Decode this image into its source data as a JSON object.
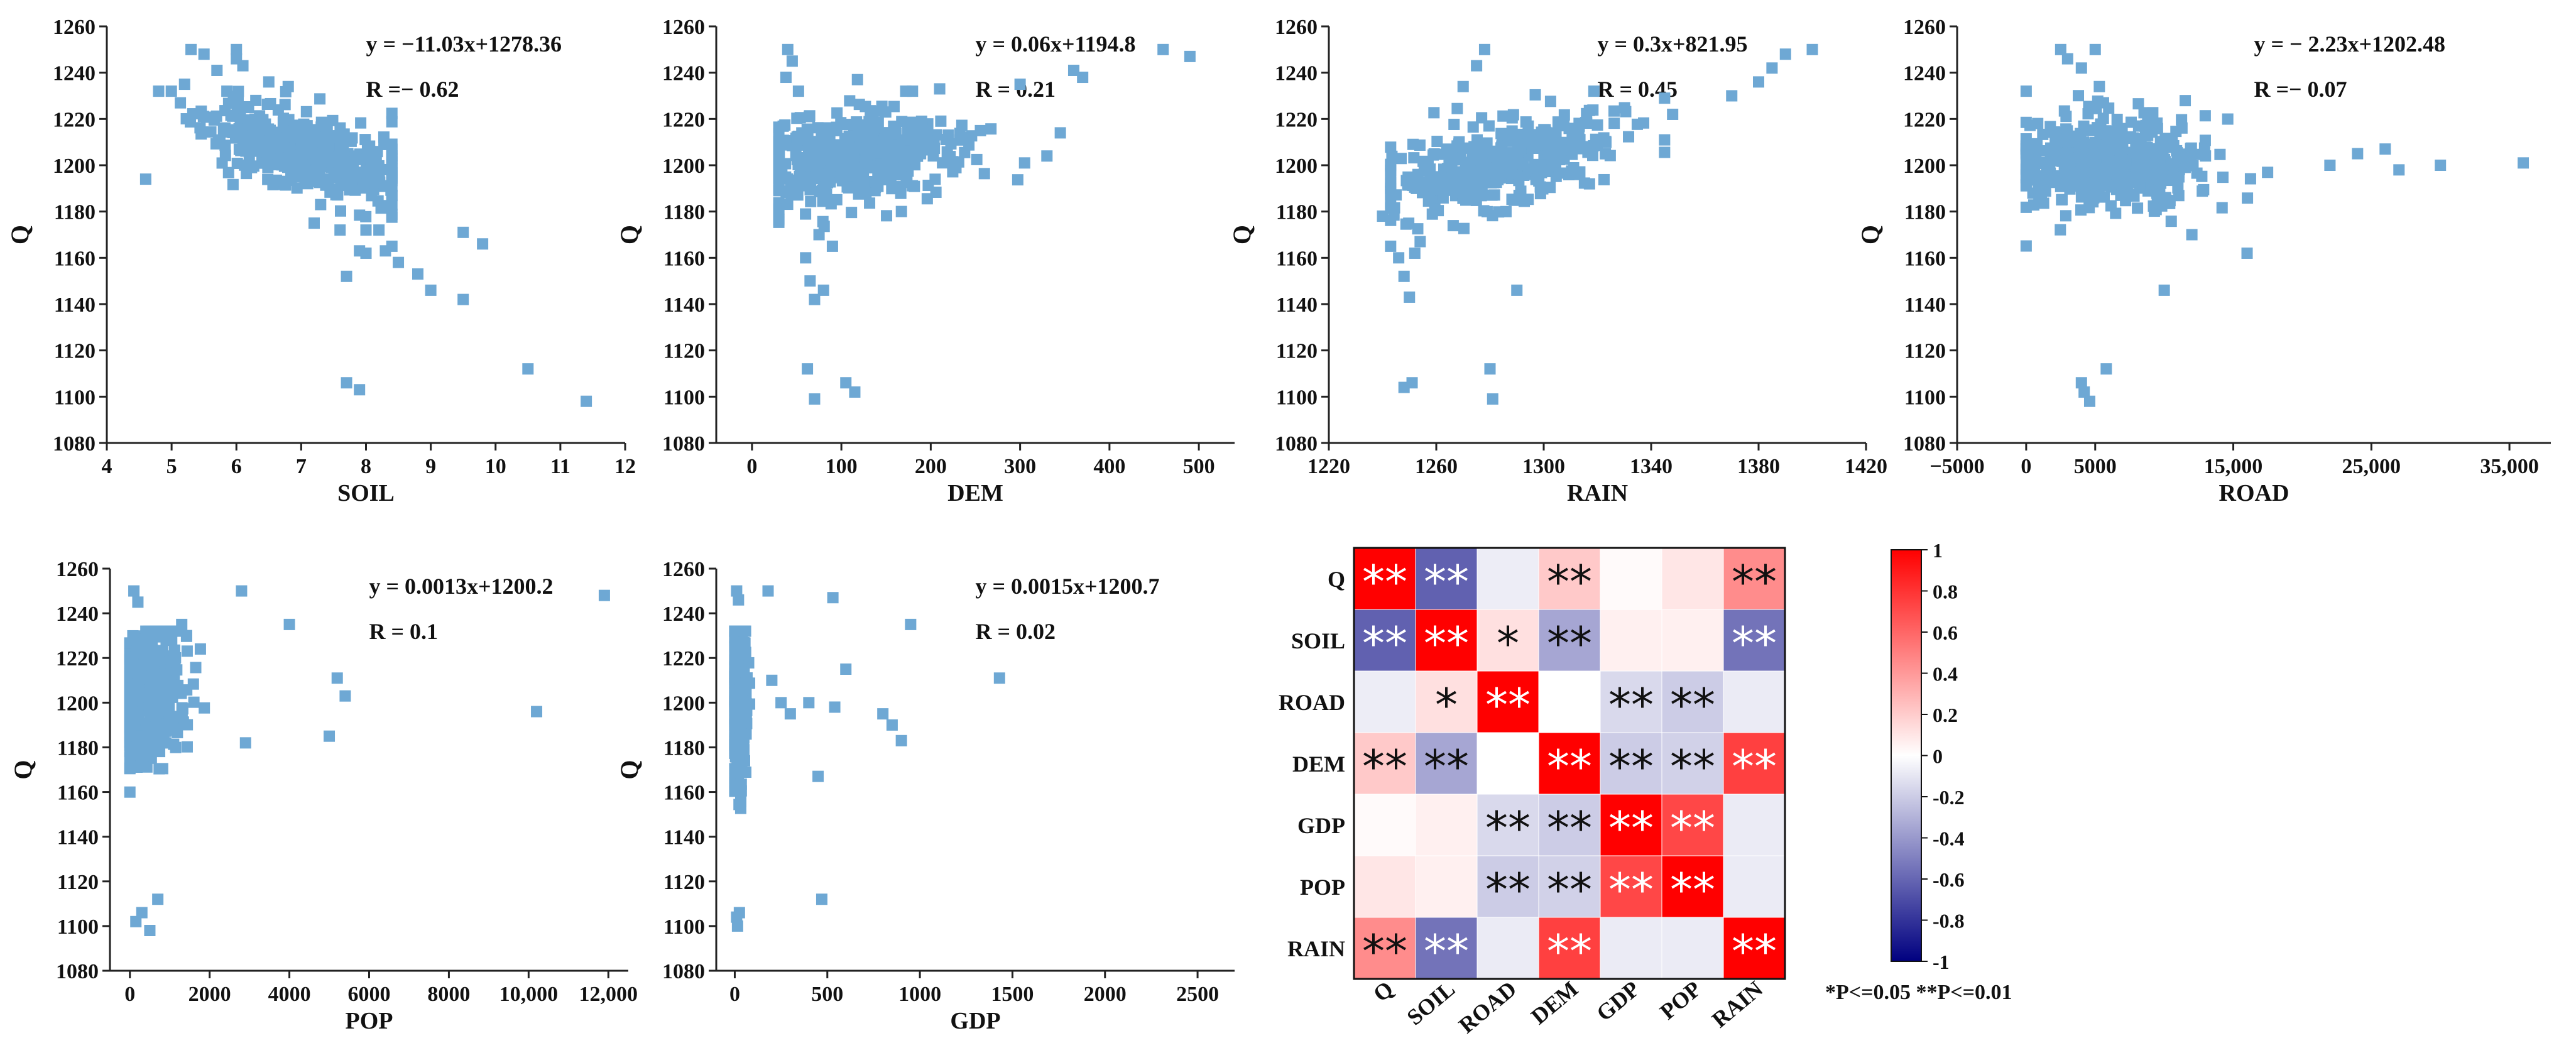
{
  "marker_color": "#6ea8d4",
  "significance_note": "*P<=0.05 **P<=0.01",
  "chart_data": [
    {
      "type": "scatter",
      "ylabel": "Q",
      "xlabel": "SOIL",
      "equation": "y = −11.03x+1278.36",
      "r_text": "R =− 0.62",
      "xlim": [
        4,
        12
      ],
      "ylim": [
        1080,
        1260
      ],
      "xticks": [
        4,
        5,
        6,
        7,
        8,
        9,
        10,
        11,
        12
      ],
      "xtick_labels": [
        "4",
        "5",
        "6",
        "7",
        "8",
        "9",
        "10",
        "11",
        "12"
      ],
      "yticks": [
        1080,
        1100,
        1120,
        1140,
        1160,
        1180,
        1200,
        1220,
        1240,
        1260
      ],
      "ytick_labels": [
        "1080",
        "1100",
        "1120",
        "1140",
        "1160",
        "1180",
        "1200",
        "1220",
        "1240",
        "1260"
      ],
      "cloud": {
        "n": 420,
        "seed": 11,
        "x_mean": 7.0,
        "x_sd": 0.75,
        "x_min": 4.8,
        "x_max": 8.4,
        "y_slope": -8,
        "y_int": 1262,
        "y_sd": 8
      },
      "points": [
        [
          4.6,
          1194
        ],
        [
          5.2,
          1235
        ],
        [
          5.3,
          1250
        ],
        [
          5.5,
          1248
        ],
        [
          5.7,
          1241
        ],
        [
          6.0,
          1250
        ],
        [
          6.0,
          1246
        ],
        [
          6.1,
          1243
        ],
        [
          6.3,
          1228
        ],
        [
          6.5,
          1236
        ],
        [
          6.8,
          1234
        ],
        [
          7.2,
          1175
        ],
        [
          7.3,
          1183
        ],
        [
          7.6,
          1172
        ],
        [
          7.7,
          1106
        ],
        [
          7.7,
          1152
        ],
        [
          7.9,
          1163
        ],
        [
          7.9,
          1103
        ],
        [
          8.0,
          1162
        ],
        [
          8.0,
          1172
        ],
        [
          8.2,
          1172
        ],
        [
          8.3,
          1163
        ],
        [
          8.4,
          1165
        ],
        [
          8.5,
          1158
        ],
        [
          8.8,
          1153
        ],
        [
          9.0,
          1146
        ],
        [
          9.5,
          1142
        ],
        [
          9.5,
          1171
        ],
        [
          9.8,
          1166
        ],
        [
          10.5,
          1112
        ],
        [
          11.4,
          1098
        ]
      ]
    },
    {
      "type": "scatter",
      "ylabel": "Q",
      "xlabel": "DEM",
      "equation": "y = 0.06x+1194.8",
      "r_text": "R = 0.21",
      "xlim": [
        -40,
        540
      ],
      "ylim": [
        1080,
        1260
      ],
      "xticks": [
        0,
        100,
        200,
        300,
        400,
        500
      ],
      "xtick_labels": [
        "0",
        "100",
        "200",
        "300",
        "400",
        "500"
      ],
      "yticks": [
        1080,
        1100,
        1120,
        1140,
        1160,
        1180,
        1200,
        1220,
        1240,
        1260
      ],
      "ytick_labels": [
        "1080",
        "1100",
        "1120",
        "1140",
        "1160",
        "1180",
        "1200",
        "1220",
        "1240",
        "1260"
      ],
      "cloud": {
        "n": 420,
        "seed": 23,
        "x_mean": 110,
        "x_sd": 55,
        "x_min": 30,
        "x_max": 300,
        "y_slope": 0.04,
        "y_int": 1198,
        "y_sd": 10
      },
      "points": [
        [
          40,
          1250
        ],
        [
          45,
          1245
        ],
        [
          38,
          1238
        ],
        [
          52,
          1232
        ],
        [
          60,
          1160
        ],
        [
          65,
          1150
        ],
        [
          70,
          1142
        ],
        [
          80,
          1146
        ],
        [
          75,
          1170
        ],
        [
          90,
          1165
        ],
        [
          62,
          1112
        ],
        [
          70,
          1099
        ],
        [
          105,
          1106
        ],
        [
          115,
          1102
        ],
        [
          118,
          1237
        ],
        [
          210,
          1233
        ],
        [
          300,
          1235
        ],
        [
          305,
          1201
        ],
        [
          330,
          1204
        ],
        [
          345,
          1214
        ],
        [
          360,
          1241
        ],
        [
          370,
          1238
        ],
        [
          460,
          1250
        ],
        [
          490,
          1247
        ]
      ]
    },
    {
      "type": "scatter",
      "ylabel": "Q",
      "xlabel": "RAIN",
      "equation": "y = 0.3x+821.95",
      "r_text": "R = 0.45",
      "xlim": [
        1220,
        1420
      ],
      "ylim": [
        1080,
        1260
      ],
      "xticks": [
        1220,
        1260,
        1300,
        1340,
        1380,
        1420
      ],
      "xtick_labels": [
        "1220",
        "1260",
        "1300",
        "1340",
        "1380",
        "1420"
      ],
      "yticks": [
        1080,
        1100,
        1120,
        1140,
        1160,
        1180,
        1200,
        1220,
        1240,
        1260
      ],
      "ytick_labels": [
        "1080",
        "1100",
        "1120",
        "1140",
        "1160",
        "1180",
        "1200",
        "1220",
        "1240",
        "1260"
      ],
      "cloud": {
        "n": 380,
        "seed": 37,
        "x_mean": 1285,
        "x_sd": 22,
        "x_min": 1243,
        "x_max": 1345,
        "y_slope": 0.25,
        "y_int": 880,
        "y_sd": 9
      },
      "points": [
        [
          1240,
          1178
        ],
        [
          1243,
          1165
        ],
        [
          1246,
          1160
        ],
        [
          1248,
          1152
        ],
        [
          1250,
          1143
        ],
        [
          1252,
          1162
        ],
        [
          1248,
          1104
        ],
        [
          1251,
          1106
        ],
        [
          1254,
          1167
        ],
        [
          1270,
          1234
        ],
        [
          1275,
          1243
        ],
        [
          1278,
          1250
        ],
        [
          1280,
          1112
        ],
        [
          1281,
          1099
        ],
        [
          1290,
          1146
        ],
        [
          1300,
          1212
        ],
        [
          1345,
          1229
        ],
        [
          1348,
          1222
        ],
        [
          1370,
          1230
        ],
        [
          1380,
          1236
        ],
        [
          1385,
          1242
        ],
        [
          1390,
          1248
        ],
        [
          1400,
          1250
        ]
      ]
    },
    {
      "type": "scatter",
      "ylabel": "Q",
      "xlabel": "ROAD",
      "equation": "y = − 2.23x+1202.48",
      "r_text": "R =− 0.07",
      "xlim": [
        -5000,
        38000
      ],
      "ylim": [
        1080,
        1260
      ],
      "xticks": [
        -5000,
        0,
        5000,
        15000,
        25000,
        35000
      ],
      "xtick_labels": [
        "−5000",
        "0",
        "5000",
        "15,000",
        "25,000",
        "35,000"
      ],
      "yticks": [
        1080,
        1100,
        1120,
        1140,
        1160,
        1180,
        1200,
        1220,
        1240,
        1260
      ],
      "ytick_labels": [
        "1080",
        "1100",
        "1120",
        "1140",
        "1160",
        "1180",
        "1200",
        "1220",
        "1240",
        "1260"
      ],
      "cloud": {
        "n": 420,
        "seed": 41,
        "x_mean": 6000,
        "x_sd": 3500,
        "x_min": 0,
        "x_max": 20000,
        "y_slope": 0,
        "y_int": 1202,
        "y_sd": 11
      },
      "points": [
        [
          2500,
          1250
        ],
        [
          3000,
          1246
        ],
        [
          4000,
          1242
        ],
        [
          5000,
          1250
        ],
        [
          5300,
          1234
        ],
        [
          5600,
          1227
        ],
        [
          4000,
          1106
        ],
        [
          4200,
          1102
        ],
        [
          4600,
          1098
        ],
        [
          5800,
          1112
        ],
        [
          10000,
          1146
        ],
        [
          12000,
          1170
        ],
        [
          16000,
          1162
        ],
        [
          22000,
          1200
        ],
        [
          24000,
          1205
        ],
        [
          26000,
          1207
        ],
        [
          27000,
          1198
        ],
        [
          30000,
          1200
        ],
        [
          36000,
          1201
        ]
      ]
    },
    {
      "type": "scatter",
      "ylabel": "Q",
      "xlabel": "POP",
      "equation": "y = 0.0013x+1200.2",
      "r_text": "R = 0.1",
      "xlim": [
        -500,
        12500
      ],
      "ylim": [
        1080,
        1260
      ],
      "xticks": [
        0,
        2000,
        4000,
        6000,
        8000,
        10000,
        12000
      ],
      "xtick_labels": [
        "0",
        "2000",
        "4000",
        "6000",
        "8000",
        "10,000",
        "12,000"
      ],
      "yticks": [
        1080,
        1100,
        1120,
        1140,
        1160,
        1180,
        1200,
        1220,
        1240,
        1260
      ],
      "ytick_labels": [
        "1080",
        "1100",
        "1120",
        "1140",
        "1160",
        "1180",
        "1200",
        "1220",
        "1240",
        "1260"
      ],
      "cloud": {
        "n": 400,
        "seed": 53,
        "x_mean": 400,
        "x_sd": 450,
        "x_min": 0,
        "x_max": 2000,
        "y_slope": 0,
        "y_int": 1203,
        "y_sd": 15
      },
      "points": [
        [
          100,
          1250
        ],
        [
          200,
          1245
        ],
        [
          150,
          1102
        ],
        [
          300,
          1106
        ],
        [
          500,
          1098
        ],
        [
          700,
          1112
        ],
        [
          1300,
          1235
        ],
        [
          2800,
          1250
        ],
        [
          2900,
          1182
        ],
        [
          4000,
          1235
        ],
        [
          5000,
          1185
        ],
        [
          5200,
          1211
        ],
        [
          5400,
          1203
        ],
        [
          10200,
          1196
        ],
        [
          11900,
          1248
        ]
      ]
    },
    {
      "type": "scatter",
      "ylabel": "Q",
      "xlabel": "GDP",
      "equation": "y = 0.0015x+1200.7",
      "r_text": "R = 0.02",
      "xlim": [
        -100,
        2700
      ],
      "ylim": [
        1080,
        1260
      ],
      "xticks": [
        0,
        500,
        1000,
        1500,
        2000,
        2500
      ],
      "xtick_labels": [
        "0",
        "500",
        "1000",
        "1500",
        "2000",
        "2500"
      ],
      "yticks": [
        1080,
        1100,
        1120,
        1140,
        1160,
        1180,
        1200,
        1220,
        1240,
        1260
      ],
      "ytick_labels": [
        "1080",
        "1100",
        "1120",
        "1140",
        "1160",
        "1180",
        "1200",
        "1220",
        "1240",
        "1260"
      ],
      "cloud": {
        "n": 300,
        "seed": 67,
        "x_mean": 15,
        "x_sd": 25,
        "x_min": 0,
        "x_max": 80,
        "y_slope": 0,
        "y_int": 1203,
        "y_sd": 18
      },
      "points": [
        [
          10,
          1250
        ],
        [
          20,
          1246
        ],
        [
          10,
          1104
        ],
        [
          25,
          1106
        ],
        [
          15,
          1100
        ],
        [
          200,
          1210
        ],
        [
          250,
          1200
        ],
        [
          300,
          1195
        ],
        [
          400,
          1200
        ],
        [
          450,
          1167
        ],
        [
          540,
          1198
        ],
        [
          600,
          1215
        ],
        [
          800,
          1195
        ],
        [
          850,
          1190
        ],
        [
          900,
          1183
        ],
        [
          950,
          1235
        ],
        [
          470,
          1112
        ],
        [
          1430,
          1211
        ],
        [
          180,
          1250
        ],
        [
          530,
          1247
        ]
      ]
    },
    {
      "type": "heatmap",
      "row_labels": [
        "Q",
        "SOIL",
        "ROAD",
        "DEM",
        "GDP",
        "POP",
        "RAIN"
      ],
      "col_labels": [
        "Q",
        "SOIL",
        "ROAD",
        "DEM",
        "GDP",
        "POP",
        "RAIN"
      ],
      "values": [
        [
          1.0,
          -0.62,
          -0.07,
          0.21,
          0.02,
          0.1,
          0.45
        ],
        [
          -0.62,
          1.0,
          0.12,
          -0.35,
          0.06,
          0.06,
          -0.55
        ],
        [
          -0.07,
          0.12,
          1.0,
          0.0,
          -0.15,
          -0.2,
          -0.08
        ],
        [
          0.21,
          -0.35,
          0.0,
          1.0,
          -0.2,
          -0.18,
          0.75
        ],
        [
          0.02,
          0.06,
          -0.15,
          -0.2,
          1.0,
          0.72,
          -0.08
        ],
        [
          0.1,
          0.06,
          -0.2,
          -0.18,
          0.72,
          1.0,
          -0.08
        ],
        [
          0.45,
          -0.55,
          -0.08,
          0.75,
          -0.08,
          -0.08,
          1.0
        ]
      ],
      "stars": [
        [
          "**",
          "**",
          "",
          "**",
          "",
          "",
          "**"
        ],
        [
          "**",
          "**",
          "*",
          "**",
          "",
          "",
          "**"
        ],
        [
          "",
          "*",
          "**",
          "",
          "**",
          "**",
          ""
        ],
        [
          "**",
          "**",
          "",
          "**",
          "**",
          "**",
          "**"
        ],
        [
          "",
          "",
          "**",
          "**",
          "**",
          "**",
          ""
        ],
        [
          "",
          "",
          "**",
          "**",
          "**",
          "**",
          ""
        ],
        [
          "**",
          "**",
          "",
          "**",
          "",
          "",
          "**"
        ]
      ],
      "colorbar": {
        "min": -1,
        "max": 1,
        "ticks": [
          1,
          0.8,
          0.6,
          0.4,
          0.2,
          0,
          -0.2,
          -0.4,
          -0.6,
          -0.8,
          -1
        ],
        "tick_labels": [
          "1",
          "0.8",
          "0.6",
          "0.4",
          "0.2",
          "0",
          "-0.2",
          "-0.4",
          "-0.6",
          "-0.8",
          "-1"
        ],
        "colors": [
          "#000080",
          "#ffffff",
          "#ff0000"
        ]
      }
    }
  ]
}
